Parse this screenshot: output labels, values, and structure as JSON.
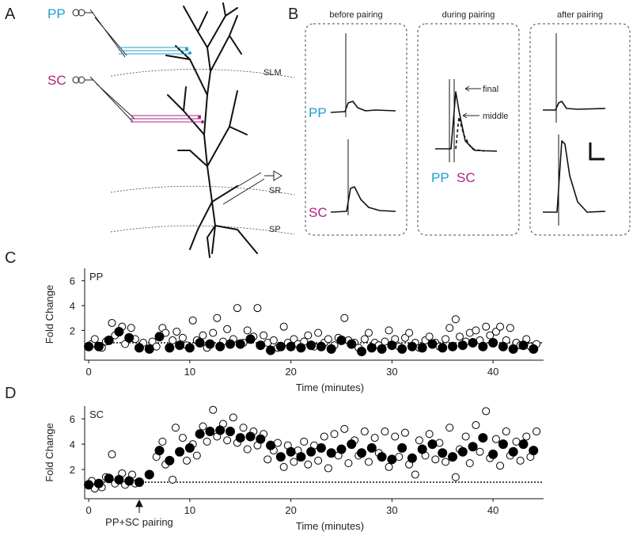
{
  "panel_labels": [
    "A",
    "B",
    "C",
    "D"
  ],
  "schematic": {
    "inputs": [
      "PP",
      "SC"
    ],
    "layers": [
      "SLM",
      "SR",
      "SP"
    ]
  },
  "traces": {
    "columns": [
      "before pairing",
      "during pairing",
      "after pairing"
    ],
    "row_labels": [
      "PP",
      "SC"
    ],
    "during_labels": [
      "PP",
      "SC"
    ],
    "annotations": [
      "final",
      "middle"
    ]
  },
  "chart_data": [
    {
      "type": "scatter",
      "label": "PP",
      "label_color": "#1f9fcf",
      "xlabel": "Time (minutes)",
      "ylabel": "Fold Change",
      "xlim": [
        -0.4,
        45
      ],
      "ylim": [
        -0.4,
        7
      ],
      "xticks": [
        0,
        10,
        20,
        30,
        40
      ],
      "yticks": [
        2,
        4,
        6
      ],
      "baseline": 1,
      "series": [
        {
          "marker": "open",
          "color": "#000000",
          "x": [
            0.3,
            0.6,
            1.3,
            1.7,
            2.3,
            2.6,
            3.3,
            3.6,
            4.2,
            4.6,
            5.4,
            6.3,
            6.7,
            7.3,
            7.6,
            8.3,
            8.7,
            9.3,
            9.7,
            10.3,
            10.7,
            11.3,
            11.7,
            12.3,
            12.7,
            13.3,
            13.7,
            14.3,
            14.7,
            15.3,
            15.7,
            16.3,
            16.7,
            17.3,
            17.7,
            18.3,
            18.7,
            19.3,
            19.7,
            20.3,
            20.7,
            21.3,
            21.7,
            22.3,
            22.7,
            23.3,
            23.7,
            24.3,
            24.7,
            25.3,
            25.7,
            26.3,
            26.7,
            27.3,
            27.7,
            28.3,
            28.7,
            29.3,
            29.7,
            30.3,
            30.7,
            31.3,
            31.7,
            32.3,
            32.7,
            33.3,
            33.7,
            34.3,
            34.7,
            35.3,
            35.7,
            36.3,
            36.7,
            37.3,
            37.7,
            38.3,
            38.7,
            39.3,
            39.7,
            40.3,
            40.7,
            41.3,
            41.7,
            42.3,
            42.7,
            43.3,
            43.7,
            44.3
          ],
          "values": [
            0.9,
            1.3,
            0.6,
            1.1,
            2.6,
            1.6,
            2.3,
            0.9,
            2.2,
            1.3,
            1.0,
            1.1,
            0.7,
            2.2,
            1.8,
            1.2,
            1.9,
            1.4,
            0.8,
            2.8,
            1.2,
            1.6,
            0.6,
            1.8,
            3.0,
            1.1,
            2.1,
            1.3,
            3.8,
            1.0,
            2.0,
            1.5,
            3.8,
            1.6,
            1.0,
            1.2,
            0.6,
            2.3,
            1.0,
            1.3,
            0.9,
            1.1,
            1.6,
            0.7,
            1.8,
            1.0,
            1.3,
            0.8,
            1.4,
            3.0,
            1.2,
            1.0,
            0.6,
            1.3,
            1.8,
            1.0,
            0.8,
            1.1,
            2.0,
            1.3,
            0.7,
            1.4,
            1.8,
            1.0,
            0.6,
            1.2,
            1.5,
            1.0,
            0.7,
            1.3,
            2.2,
            2.9,
            1.5,
            1.1,
            1.8,
            2.0,
            1.2,
            2.3,
            1.6,
            1.9,
            2.3,
            1.2,
            2.2,
            1.0,
            0.8,
            1.3,
            0.7,
            0.9
          ]
        },
        {
          "marker": "filled",
          "color": "#000000",
          "x": [
            0,
            1,
            2,
            3,
            4,
            5,
            6,
            7,
            8,
            9,
            10,
            11,
            12,
            13,
            14,
            15,
            16,
            17,
            18,
            19,
            20,
            21,
            22,
            23,
            24,
            25,
            26,
            27,
            28,
            29,
            30,
            31,
            32,
            33,
            34,
            35,
            36,
            37,
            38,
            39,
            40,
            41,
            42,
            43,
            44
          ],
          "values": [
            0.7,
            0.7,
            1.2,
            1.9,
            1.4,
            0.6,
            0.5,
            1.5,
            0.6,
            0.8,
            0.6,
            1.0,
            0.9,
            0.7,
            0.9,
            0.9,
            1.3,
            0.8,
            0.4,
            0.7,
            0.7,
            0.6,
            0.8,
            0.7,
            0.5,
            1.2,
            0.9,
            0.3,
            0.6,
            0.5,
            0.8,
            0.5,
            0.7,
            0.6,
            0.9,
            0.6,
            0.7,
            0.8,
            1.0,
            0.7,
            1.0,
            0.7,
            0.5,
            0.8,
            0.5
          ]
        }
      ]
    },
    {
      "type": "scatter",
      "label": "SC",
      "label_color": "#b0237f",
      "xlabel": "Time (minutes)",
      "ylabel": "Fold Change",
      "xlim": [
        -0.4,
        45
      ],
      "ylim": [
        -0.3,
        7
      ],
      "xticks": [
        0,
        10,
        20,
        30,
        40
      ],
      "yticks": [
        2,
        4,
        6
      ],
      "baseline": 1,
      "annotation": {
        "text": "PP+SC pairing",
        "x": 5
      },
      "series": [
        {
          "marker": "open",
          "color": "#000000",
          "x": [
            0.3,
            0.6,
            1.3,
            1.7,
            2.3,
            2.6,
            3.3,
            3.6,
            4.3,
            4.6,
            6.7,
            7.3,
            7.6,
            8.3,
            8.6,
            9.3,
            9.7,
            10.3,
            10.7,
            11.3,
            11.7,
            12.3,
            12.7,
            13.3,
            13.7,
            14.3,
            14.7,
            15.3,
            15.7,
            16.3,
            16.7,
            17.3,
            17.7,
            18.3,
            18.7,
            19.3,
            19.7,
            20.3,
            20.7,
            21.3,
            21.7,
            22.3,
            22.7,
            23.3,
            23.7,
            24.3,
            24.7,
            25.3,
            25.7,
            26.3,
            26.7,
            27.3,
            27.7,
            28.3,
            28.7,
            29.3,
            29.7,
            30.3,
            30.7,
            31.3,
            31.7,
            32.3,
            32.7,
            33.3,
            33.7,
            34.3,
            34.7,
            35.3,
            35.7,
            36.3,
            36.7,
            37.3,
            37.7,
            38.3,
            38.7,
            39.3,
            39.7,
            40.3,
            40.7,
            41.3,
            41.7,
            42.3,
            42.7,
            43.3,
            43.7,
            44.3
          ],
          "values": [
            1.1,
            0.5,
            0.6,
            1.4,
            3.2,
            0.9,
            1.7,
            0.8,
            1.6,
            0.9,
            3.0,
            4.2,
            2.4,
            1.2,
            5.3,
            4.5,
            2.7,
            4.0,
            3.1,
            5.4,
            4.2,
            6.7,
            4.6,
            5.6,
            4.3,
            6.1,
            4.1,
            5.3,
            3.6,
            5.0,
            3.9,
            4.8,
            2.8,
            3.5,
            4.1,
            2.2,
            3.9,
            2.6,
            3.5,
            4.2,
            2.4,
            3.9,
            2.7,
            4.6,
            2.1,
            4.8,
            3.1,
            5.2,
            2.5,
            4.3,
            3.1,
            5.0,
            2.6,
            4.5,
            3.3,
            5.0,
            2.2,
            4.6,
            3.0,
            4.9,
            2.4,
            1.6,
            4.3,
            3.1,
            4.8,
            2.8,
            4.1,
            2.6,
            5.3,
            1.4,
            3.6,
            4.6,
            2.5,
            5.5,
            3.4,
            6.6,
            2.9,
            4.4,
            2.3,
            5.0,
            3.1,
            4.2,
            2.7,
            4.6,
            3.0,
            5.0
          ]
        },
        {
          "marker": "filled",
          "color": "#000000",
          "x": [
            0,
            1,
            2,
            3,
            4,
            5,
            6,
            7,
            8,
            9,
            10,
            11,
            12,
            13,
            14,
            15,
            16,
            17,
            18,
            19,
            20,
            21,
            22,
            23,
            24,
            25,
            26,
            27,
            28,
            29,
            30,
            31,
            32,
            33,
            34,
            35,
            36,
            37,
            38,
            39,
            40,
            41,
            42,
            43,
            44
          ],
          "values": [
            0.8,
            0.9,
            1.3,
            1.2,
            1.1,
            1.0,
            1.6,
            3.5,
            2.7,
            3.4,
            3.7,
            4.8,
            5.0,
            5.1,
            5.0,
            4.5,
            4.6,
            4.4,
            3.9,
            3.0,
            3.4,
            3.0,
            3.4,
            3.7,
            3.3,
            3.6,
            4.0,
            3.3,
            3.7,
            3.0,
            2.8,
            3.7,
            2.9,
            3.6,
            4.0,
            3.3,
            3.0,
            3.4,
            3.8,
            4.5,
            3.2,
            4.0,
            3.4,
            4.0,
            3.5
          ]
        }
      ]
    }
  ]
}
